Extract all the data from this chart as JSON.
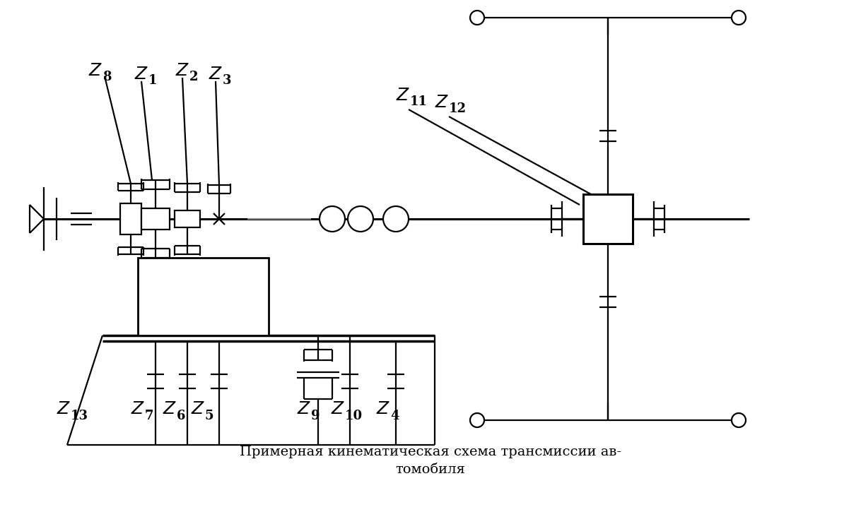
{
  "title_line1": "Примерная кинематическая схема трансмиссии ав-",
  "title_line2": "томобиля",
  "bg_color": "#ffffff",
  "lc": "#000000",
  "lw": 1.6
}
